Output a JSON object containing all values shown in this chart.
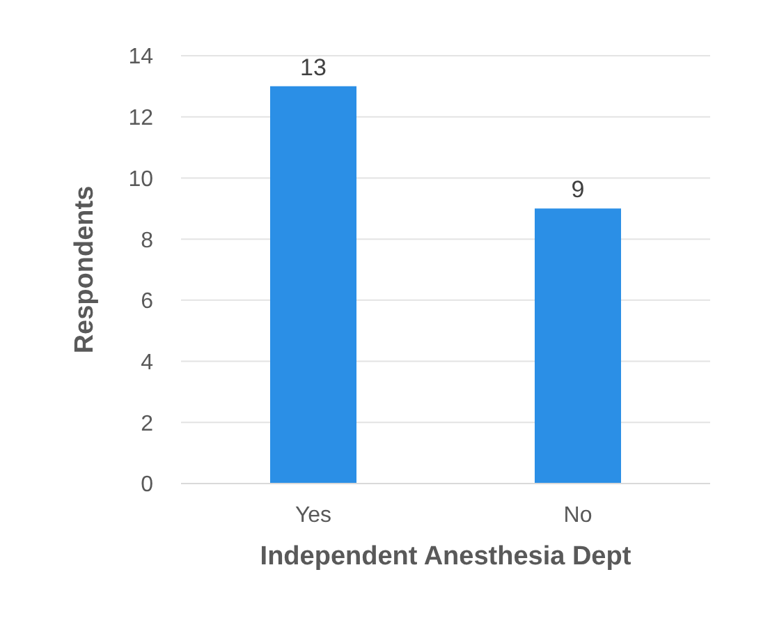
{
  "chart_data": {
    "type": "bar",
    "xlabel": "Independent Anesthesia Dept",
    "ylabel": "Respondents",
    "categories": [
      "Yes",
      "No"
    ],
    "values": [
      13,
      9
    ],
    "color": "#2b8fe6",
    "ylim": [
      0,
      14
    ],
    "yticks": [
      0,
      2,
      4,
      6,
      8,
      10,
      12,
      14
    ],
    "grid": "y",
    "data_labels": true
  }
}
